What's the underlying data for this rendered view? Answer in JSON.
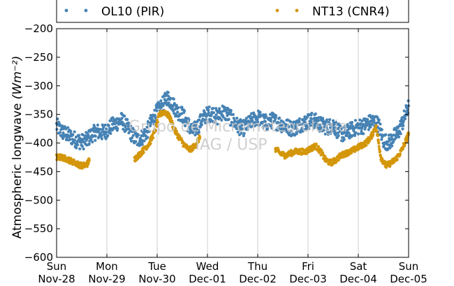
{
  "chart_data": {
    "type": "scatter",
    "ylabel_text": "Atmospheric longwave ",
    "ylabel_unit": "(Wm⁻²)",
    "ylim": [
      -600,
      -200
    ],
    "yticks": [
      -600,
      -550,
      -500,
      -450,
      -400,
      -350,
      -300,
      -250,
      -200
    ],
    "xlim": [
      0,
      7
    ],
    "xticks": [
      {
        "x": 0,
        "day": "Sun",
        "date": "Nov-28"
      },
      {
        "x": 1,
        "day": "Mon",
        "date": "Nov-29"
      },
      {
        "x": 2,
        "day": "Tue",
        "date": "Nov-30"
      },
      {
        "x": 3,
        "day": "Wed",
        "date": "Dec-01"
      },
      {
        "x": 4,
        "day": "Thu",
        "date": "Dec-02"
      },
      {
        "x": 5,
        "day": "Fri",
        "date": "Dec-03"
      },
      {
        "x": 6,
        "day": "Sat",
        "date": "Dec-04"
      },
      {
        "x": 7,
        "day": "Sun",
        "date": "Dec-05"
      }
    ],
    "grid": "vertical",
    "legend_position": "top",
    "series": [
      {
        "name": "OL10 (PIR)",
        "color": "#4682b4",
        "x": [
          0.0,
          0.1,
          0.2,
          0.3,
          0.4,
          0.5,
          0.6,
          0.7,
          0.8,
          0.9,
          1.0,
          1.1,
          1.2,
          1.3,
          1.4,
          1.5,
          1.6,
          1.7,
          1.8,
          1.9,
          2.0,
          2.1,
          2.2,
          2.3,
          2.4,
          2.5,
          2.6,
          2.7,
          2.8,
          2.9,
          3.0,
          3.1,
          3.2,
          3.3,
          3.4,
          3.5,
          3.6,
          3.7,
          3.8,
          3.9,
          4.0,
          4.1,
          4.2,
          4.3,
          4.4,
          4.5,
          4.6,
          4.7,
          4.8,
          4.9,
          5.0,
          5.1,
          5.2,
          5.3,
          5.4,
          5.5,
          5.6,
          5.7,
          5.8,
          5.9,
          6.0,
          6.1,
          6.2,
          6.3,
          6.4,
          6.5,
          6.6,
          6.7,
          6.8,
          6.9,
          7.0
        ],
        "y": [
          -370,
          -380,
          -385,
          -390,
          -395,
          -398,
          -395,
          -385,
          -380,
          -382,
          -378,
          -370,
          -365,
          -360,
          -372,
          -385,
          -395,
          -390,
          -380,
          -360,
          -345,
          -335,
          -320,
          -330,
          -345,
          -350,
          -365,
          -380,
          -372,
          -358,
          -350,
          -348,
          -355,
          -345,
          -350,
          -360,
          -370,
          -375,
          -368,
          -360,
          -355,
          -362,
          -365,
          -360,
          -365,
          -368,
          -372,
          -375,
          -370,
          -365,
          -362,
          -360,
          -365,
          -370,
          -372,
          -368,
          -380,
          -385,
          -380,
          -375,
          -372,
          -370,
          -365,
          -362,
          -368,
          -395,
          -400,
          -390,
          -380,
          -360,
          -335
        ]
      },
      {
        "name": "NT13 (CNR4)",
        "color": "#d4960a",
        "x": [
          0.0,
          0.1,
          0.2,
          0.3,
          0.4,
          0.5,
          0.6,
          0.65,
          1.55,
          1.65,
          1.75,
          1.85,
          1.95,
          2.05,
          2.15,
          2.25,
          2.35,
          2.45,
          2.55,
          2.65,
          2.75,
          2.85,
          4.35,
          4.45,
          4.55,
          4.65,
          4.75,
          4.85,
          4.95,
          5.05,
          5.15,
          5.25,
          5.35,
          5.45,
          5.55,
          5.65,
          5.75,
          5.85,
          5.95,
          6.05,
          6.15,
          6.25,
          6.35,
          6.45,
          6.55,
          6.65,
          6.75,
          6.85,
          6.95,
          7.0
        ],
        "y": [
          -425,
          -425,
          -428,
          -432,
          -436,
          -440,
          -438,
          -430,
          -428,
          -420,
          -410,
          -400,
          -380,
          -350,
          -345,
          -355,
          -378,
          -392,
          -405,
          -412,
          -405,
          -390,
          -410,
          -418,
          -422,
          -418,
          -415,
          -415,
          -415,
          -410,
          -405,
          -415,
          -430,
          -435,
          -430,
          -422,
          -418,
          -415,
          -410,
          -405,
          -400,
          -390,
          -370,
          -425,
          -440,
          -435,
          -428,
          -415,
          -395,
          -385
        ]
      }
    ]
  },
  "watermark": {
    "line1": "Grupo de Micrometeorologia",
    "line2": "IAG / USP"
  }
}
